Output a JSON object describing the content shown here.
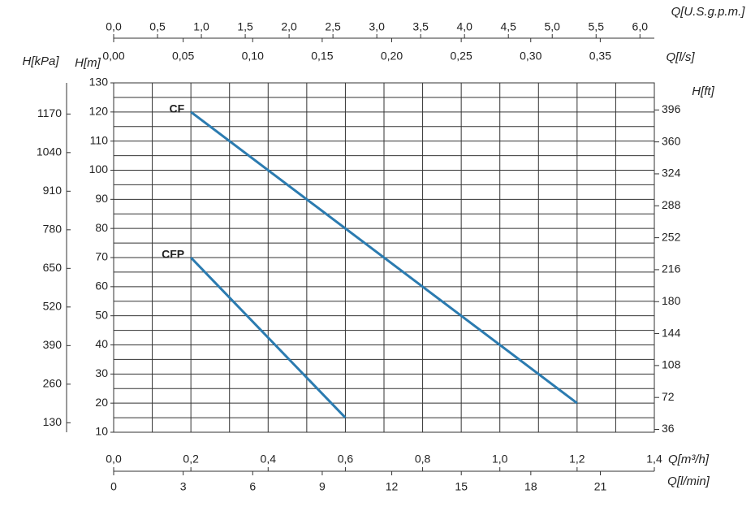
{
  "chart_data": {
    "type": "line",
    "x_label": "Q[m³/h]",
    "xlim": [
      0,
      1.4
    ],
    "xticks": [
      {
        "value": 0,
        "label": "0,0"
      },
      {
        "value": 0.2,
        "label": "0,2"
      },
      {
        "value": 0.4,
        "label": "0,4"
      },
      {
        "value": 0.6,
        "label": "0,6"
      },
      {
        "value": 0.8,
        "label": "0,8"
      },
      {
        "value": 1.0,
        "label": "1,0"
      },
      {
        "value": 1.2,
        "label": "1,2"
      },
      {
        "value": 1.4,
        "label": "1,4"
      }
    ],
    "x_minor_ticks": [
      0.1,
      0.3,
      0.5,
      0.7,
      0.9,
      1.1,
      1.3
    ],
    "y_label": "H[m]",
    "ylim": [
      10,
      130
    ],
    "yticks": [
      10,
      20,
      30,
      40,
      50,
      60,
      70,
      80,
      90,
      100,
      110,
      120,
      130
    ],
    "y_minor_ticks": [
      15,
      25,
      35,
      45,
      55,
      65,
      75,
      85,
      95,
      105,
      115,
      125
    ],
    "grid": true,
    "y_kpa": {
      "label": "H[kPa]",
      "lim": [
        98.07,
        1274.9
      ],
      "ticks": [
        130,
        260,
        390,
        520,
        650,
        780,
        910,
        1040,
        1170
      ]
    },
    "y_ft": {
      "label": "H[ft]",
      "lim": [
        32.81,
        426.5
      ],
      "ticks": [
        36,
        72,
        108,
        144,
        180,
        216,
        252,
        288,
        324,
        360,
        396
      ]
    },
    "x_gpm": {
      "label": "Q[U.S.g.p.m.]",
      "lim": [
        0,
        6.164
      ],
      "ticks": [
        {
          "value": 0,
          "label": "0,0"
        },
        {
          "value": 0.5,
          "label": "0,5"
        },
        {
          "value": 1.0,
          "label": "1,0"
        },
        {
          "value": 1.5,
          "label": "1,5"
        },
        {
          "value": 2.0,
          "label": "2,0"
        },
        {
          "value": 2.5,
          "label": "2,5"
        },
        {
          "value": 3.0,
          "label": "3,0"
        },
        {
          "value": 3.5,
          "label": "3,5"
        },
        {
          "value": 4.0,
          "label": "4,0"
        },
        {
          "value": 4.5,
          "label": "4,5"
        },
        {
          "value": 5.0,
          "label": "5,0"
        },
        {
          "value": 5.5,
          "label": "5,5"
        },
        {
          "value": 6.0,
          "label": "6,0"
        }
      ]
    },
    "x_ls": {
      "label": "Q[l/s]",
      "lim": [
        0,
        0.3889
      ],
      "ticks": [
        {
          "value": 0,
          "label": "0,00"
        },
        {
          "value": 0.05,
          "label": "0,05"
        },
        {
          "value": 0.1,
          "label": "0,10"
        },
        {
          "value": 0.15,
          "label": "0,15"
        },
        {
          "value": 0.2,
          "label": "0,20"
        },
        {
          "value": 0.25,
          "label": "0,25"
        },
        {
          "value": 0.3,
          "label": "0,30"
        },
        {
          "value": 0.35,
          "label": "0,35"
        }
      ]
    },
    "x_lmin": {
      "label": "Q[l/min]",
      "lim": [
        0,
        23.33
      ],
      "ticks": [
        0,
        3,
        6,
        9,
        12,
        15,
        18,
        21
      ]
    },
    "series": [
      {
        "name": "CF",
        "color": "#2b7bb0",
        "x": [
          0.2,
          1.2
        ],
        "values": [
          120,
          20
        ]
      },
      {
        "name": "CFP",
        "color": "#2b7bb0",
        "x": [
          0.2,
          0.6
        ],
        "values": [
          70,
          15
        ]
      }
    ]
  }
}
